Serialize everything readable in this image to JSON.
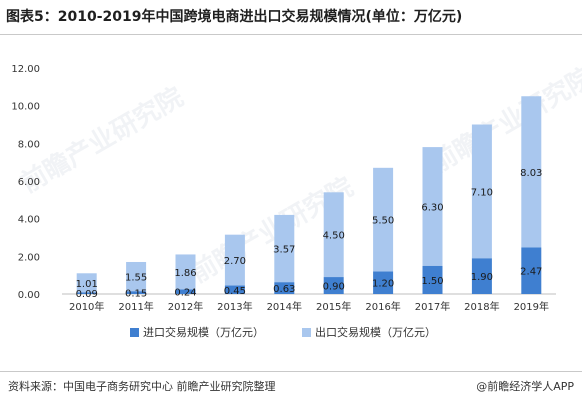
{
  "title": "图表5：2010-2019年中国跨境电商进出口交易规模情况(单位：万亿元)",
  "source": "资料来源：中国电子商务研究中心 前瞻产业研究院整理",
  "brand": "@前瞻经济学人APP",
  "watermark": "前瞻产业研究院",
  "colors": {
    "import": "#3f7fd0",
    "export": "#a9c7ee",
    "axis": "#bfbfbf",
    "text": "#333333"
  },
  "chart_data": {
    "type": "bar",
    "stacked": true,
    "categories": [
      "2010年",
      "2011年",
      "2012年",
      "2013年",
      "2014年",
      "2015年",
      "2016年",
      "2017年",
      "2018年",
      "2019年"
    ],
    "series": [
      {
        "name": "进口交易规模（万亿元）",
        "values": [
          0.09,
          0.15,
          0.24,
          0.45,
          0.63,
          0.9,
          1.2,
          1.5,
          1.9,
          2.47
        ]
      },
      {
        "name": "出口交易规模（万亿元）",
        "values": [
          1.01,
          1.55,
          1.86,
          2.7,
          3.57,
          4.5,
          5.5,
          6.3,
          7.1,
          8.03
        ]
      }
    ],
    "ylim": [
      0,
      12
    ],
    "yticks": [
      "0.00",
      "2.00",
      "4.00",
      "6.00",
      "8.00",
      "10.00",
      "12.00"
    ],
    "grid": false,
    "legend": "bottom"
  }
}
